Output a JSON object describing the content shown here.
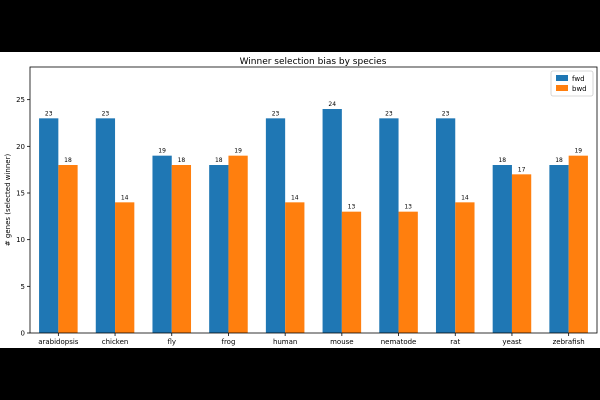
{
  "chart_data": {
    "type": "bar",
    "title": "Winner selection bias by species",
    "xlabel": "",
    "ylabel": "# genes (selected winner)",
    "categories": [
      "arabidopsis",
      "chicken",
      "fly",
      "frog",
      "human",
      "mouse",
      "nematode",
      "rat",
      "yeast",
      "zebrafish"
    ],
    "series": [
      {
        "name": "fwd",
        "color": "#1f77b4",
        "values": [
          23,
          23,
          19,
          18,
          23,
          24,
          23,
          23,
          18,
          18
        ]
      },
      {
        "name": "bwd",
        "color": "#ff7f0e",
        "values": [
          18,
          14,
          18,
          19,
          14,
          13,
          13,
          14,
          17,
          19
        ]
      }
    ],
    "ylim": [
      0,
      28.5
    ],
    "yticks": [
      0,
      5,
      10,
      15,
      20,
      25
    ],
    "grid": false,
    "legend_position": "top-right"
  }
}
